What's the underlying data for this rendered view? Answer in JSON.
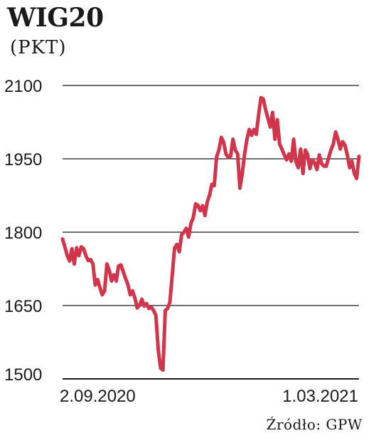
{
  "chart_data": {
    "type": "line",
    "title": "WIG20",
    "subtitle": "(PKT)",
    "source": "Źródło: GPW",
    "colors": {
      "line": "#d2344b",
      "grid": "#1a1a1a",
      "text": "#1a1a1a"
    },
    "grid": true,
    "ylim": [
      1500,
      2100
    ],
    "yticks": [
      1500,
      1650,
      1800,
      1950,
      2100
    ],
    "ytick_labels": [
      "1500",
      "1650",
      "1800",
      "1950",
      "2100"
    ],
    "x_start_label": "2.09.2020",
    "x_end_label": "1.03.2021",
    "series": [
      {
        "values": [
          1786,
          1770,
          1752,
          1741,
          1766,
          1735,
          1768,
          1752,
          1770,
          1766,
          1752,
          1742,
          1744,
          1735,
          1692,
          1703,
          1687,
          1672,
          1680,
          1735,
          1722,
          1700,
          1713,
          1700,
          1731,
          1733,
          1719,
          1705,
          1693,
          1672,
          1680,
          1665,
          1645,
          1651,
          1663,
          1649,
          1654,
          1644,
          1646,
          1640,
          1630,
          1560,
          1522,
          1518,
          1640,
          1644,
          1657,
          1712,
          1768,
          1775,
          1760,
          1795,
          1800,
          1808,
          1790,
          1818,
          1830,
          1858,
          1855,
          1844,
          1854,
          1834,
          1862,
          1876,
          1898,
          1895,
          1954,
          1968,
          1994,
          1984,
          1960,
          1953,
          1955,
          1990,
          1968,
          1960,
          1890,
          1920,
          1960,
          1990,
          2010,
          1998,
          2010,
          2000,
          2040,
          2075,
          2072,
          2050,
          2033,
          2015,
          2045,
          1990,
          2030,
          1980,
          1970,
          1958,
          1948,
          1960,
          1945,
          1990,
          1944,
          1932,
          1970,
          1920,
          1968,
          1958,
          1930,
          1948,
          1942,
          1928,
          1958,
          1940,
          1935,
          1935,
          1952,
          1968,
          1980,
          2005,
          1990,
          1970,
          1985,
          1978,
          1958,
          1932,
          1945,
          1920,
          1910,
          1955
        ]
      }
    ]
  }
}
